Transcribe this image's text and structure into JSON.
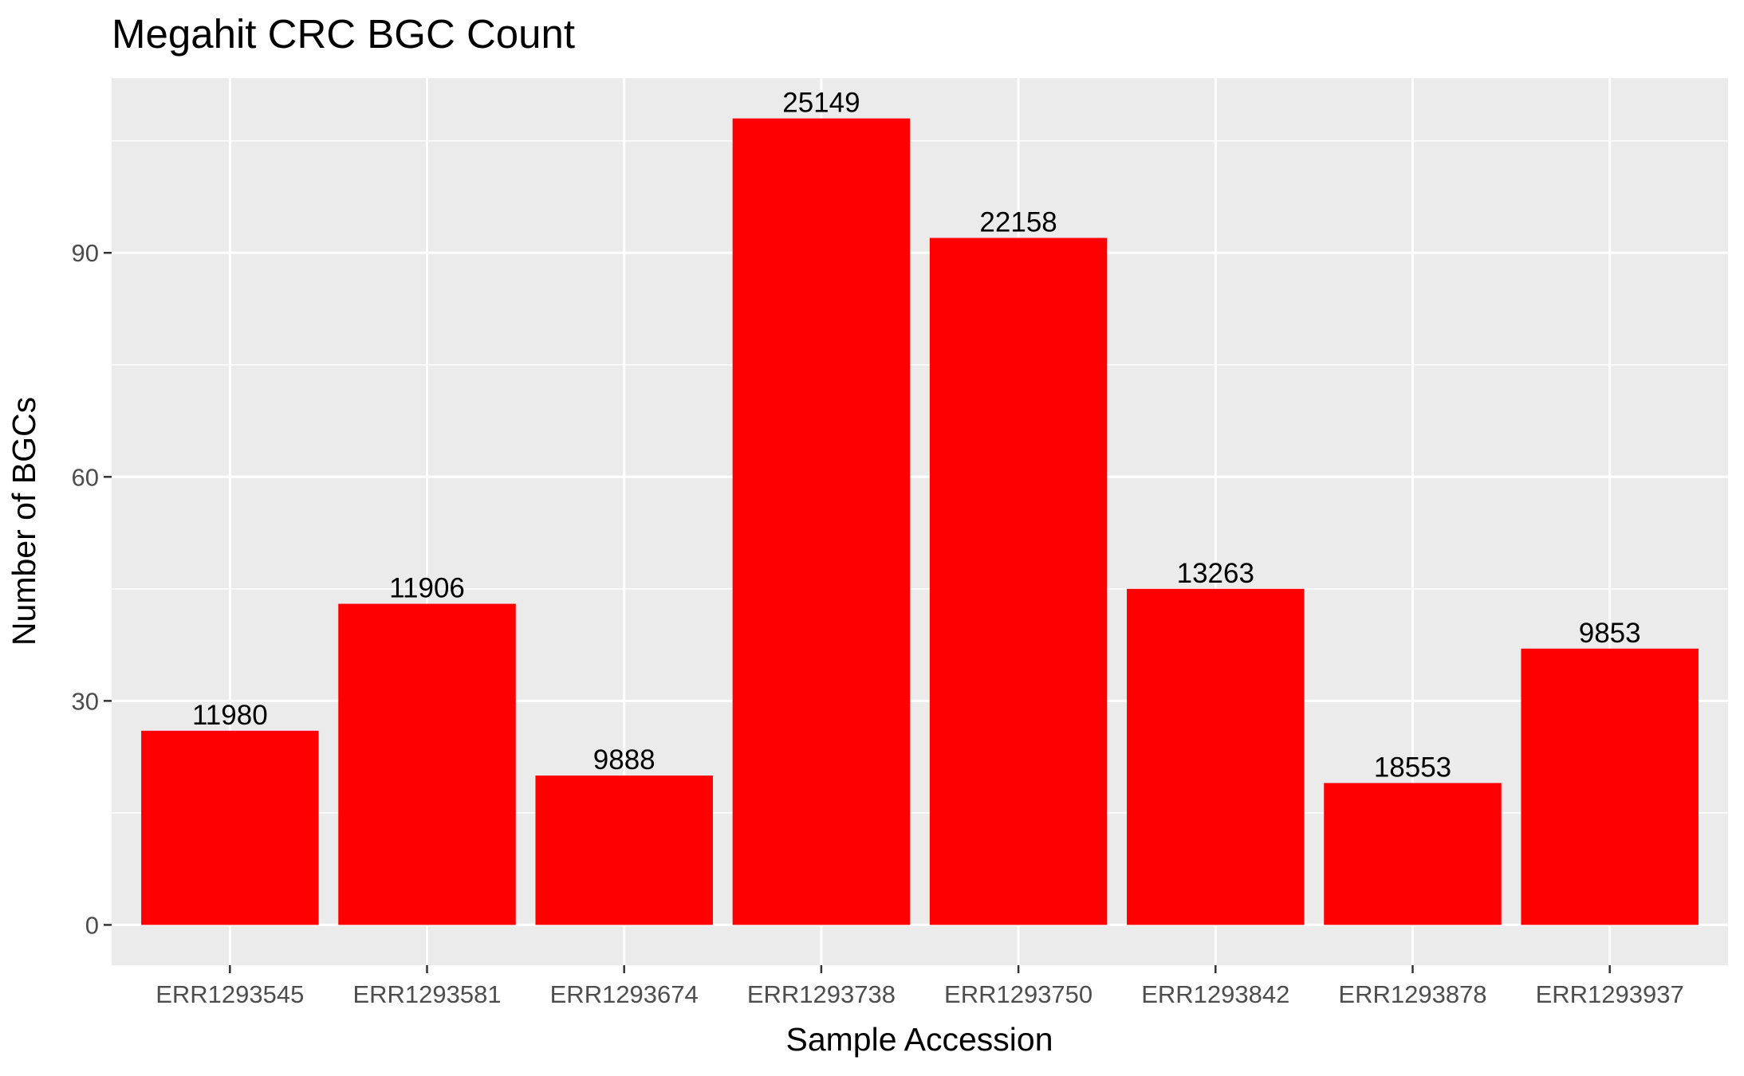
{
  "chart_data": {
    "type": "bar",
    "title": "Megahit CRC BGC Count",
    "xlabel": "Sample Accession",
    "ylabel": "Number of BGCs",
    "categories": [
      "ERR1293545",
      "ERR1293581",
      "ERR1293674",
      "ERR1293738",
      "ERR1293750",
      "ERR1293842",
      "ERR1293878",
      "ERR1293937"
    ],
    "values": [
      26,
      43,
      20,
      108,
      92,
      45,
      19,
      37
    ],
    "bar_labels": [
      "11980",
      "11906",
      "9888",
      "25149",
      "22158",
      "13263",
      "18553",
      "9853"
    ],
    "y_ticks": [
      0,
      30,
      60,
      90
    ],
    "ylim": [
      -5.4,
      113.4
    ],
    "grid": true,
    "legend": "none",
    "colors": {
      "bar": "#FF0000",
      "panel_background": "#EBEBEB",
      "grid": "#FFFFFF",
      "tick_text": "#4D4D4D",
      "tick_mark": "#333333"
    }
  }
}
